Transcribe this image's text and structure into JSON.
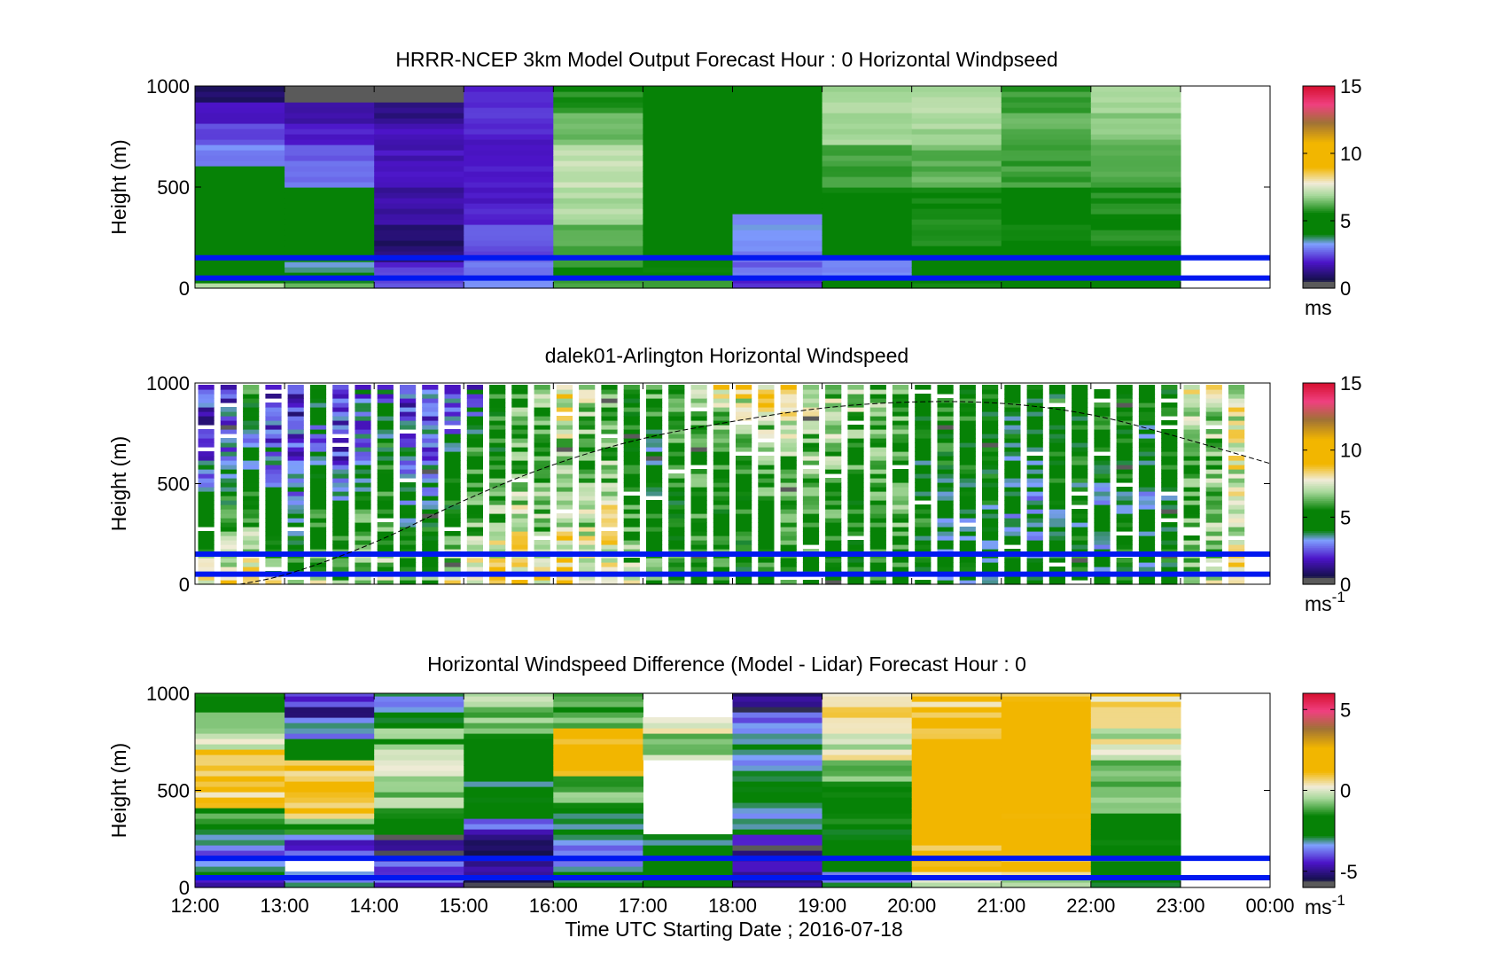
{
  "figure": {
    "xlabel": "Time UTC  Starting Date ; 2016-07-18",
    "x_tick_labels": [
      "12:00",
      "13:00",
      "14:00",
      "15:00",
      "16:00",
      "17:00",
      "18:00",
      "19:00",
      "20:00",
      "21:00",
      "22:00",
      "23:00",
      "00:00"
    ]
  },
  "colors": {
    "scale_low": "#5a5a5a",
    "dark_navy": "#14104a",
    "purple": "#4c14c8",
    "light_blue": "#7fa0ff",
    "dark_green": "#068206",
    "light_green": "#a6d89a",
    "pale": "#f1ecd8",
    "gold": "#f2b600",
    "brown": "#a07236",
    "pink": "#f04080",
    "red": "#d61030",
    "overlay_line": "#0018f0"
  },
  "chart_data": [
    {
      "type": "heatmap",
      "title": "HRRR-NCEP 3km Model Output   Forecast Hour : 0 Horizontal Windpseed",
      "ylabel": "Height (m)",
      "y_ticks": [
        "0",
        "500",
        "1000"
      ],
      "ylim": [
        0,
        1000
      ],
      "xlim": [
        "12:00",
        "00:00"
      ],
      "colorbar": {
        "range": [
          0,
          15
        ],
        "ticks": [
          "0",
          "5",
          "10",
          "15"
        ],
        "unit": "ms",
        "unit_sup": ""
      },
      "overlay_lines_height_m": [
        150,
        50
      ],
      "data_hours": 11,
      "profiles": [
        [
          [
            0,
            20,
            7.0
          ],
          [
            20,
            70,
            4.5
          ],
          [
            70,
            130,
            5.3
          ],
          [
            130,
            200,
            4.5
          ],
          [
            200,
            600,
            4.8
          ],
          [
            600,
            700,
            3.0
          ],
          [
            700,
            800,
            2.4
          ],
          [
            800,
            900,
            2.0
          ],
          [
            900,
            1000,
            0.8
          ]
        ],
        [
          [
            0,
            20,
            6.5
          ],
          [
            20,
            70,
            4.0
          ],
          [
            70,
            130,
            3.5
          ],
          [
            130,
            200,
            4.0
          ],
          [
            200,
            500,
            4.5
          ],
          [
            500,
            600,
            3.0
          ],
          [
            600,
            700,
            2.8
          ],
          [
            700,
            800,
            2.0
          ],
          [
            800,
            900,
            1.5
          ],
          [
            900,
            1000,
            0.2
          ]
        ],
        [
          [
            0,
            70,
            2.5
          ],
          [
            70,
            130,
            2.2
          ],
          [
            130,
            300,
            1.0
          ],
          [
            300,
            500,
            1.5
          ],
          [
            500,
            800,
            1.8
          ],
          [
            800,
            900,
            1.2
          ],
          [
            900,
            1000,
            0.2
          ]
        ],
        [
          [
            0,
            30,
            3.0
          ],
          [
            30,
            70,
            2.6
          ],
          [
            70,
            150,
            2.8
          ],
          [
            150,
            300,
            2.6
          ],
          [
            300,
            500,
            2.0
          ],
          [
            500,
            800,
            2.0
          ],
          [
            800,
            1000,
            2.2
          ]
        ],
        [
          [
            0,
            30,
            6.2
          ],
          [
            30,
            100,
            5.5
          ],
          [
            100,
            300,
            6.2
          ],
          [
            300,
            500,
            7.0
          ],
          [
            500,
            700,
            7.2
          ],
          [
            700,
            850,
            6.4
          ],
          [
            850,
            1000,
            5.8
          ]
        ],
        [
          [
            0,
            50,
            6.0
          ],
          [
            50,
            150,
            5.5
          ],
          [
            150,
            400,
            5.0
          ],
          [
            400,
            800,
            4.9
          ],
          [
            800,
            1000,
            4.7
          ]
        ],
        [
          [
            0,
            50,
            2.2
          ],
          [
            50,
            150,
            2.8
          ],
          [
            150,
            250,
            3.0
          ],
          [
            250,
            350,
            3.2
          ],
          [
            350,
            450,
            5.0
          ],
          [
            450,
            1000,
            4.8
          ]
        ],
        [
          [
            0,
            50,
            5.5
          ],
          [
            50,
            150,
            3.0
          ],
          [
            150,
            350,
            4.8
          ],
          [
            350,
            500,
            5.4
          ],
          [
            500,
            700,
            6.0
          ],
          [
            700,
            850,
            6.8
          ],
          [
            850,
            1000,
            7.0
          ]
        ],
        [
          [
            0,
            50,
            5.5
          ],
          [
            50,
            200,
            5.2
          ],
          [
            200,
            500,
            5.6
          ],
          [
            500,
            700,
            6.3
          ],
          [
            700,
            850,
            6.9
          ],
          [
            850,
            1000,
            7.0
          ]
        ],
        [
          [
            0,
            50,
            5.5
          ],
          [
            50,
            200,
            5.3
          ],
          [
            200,
            500,
            5.6
          ],
          [
            500,
            700,
            6.0
          ],
          [
            700,
            850,
            6.3
          ],
          [
            850,
            1000,
            6.0
          ]
        ],
        [
          [
            0,
            50,
            5.5
          ],
          [
            50,
            200,
            5.3
          ],
          [
            200,
            500,
            5.7
          ],
          [
            500,
            700,
            6.2
          ],
          [
            700,
            850,
            6.6
          ],
          [
            850,
            1000,
            7.0
          ]
        ]
      ]
    },
    {
      "type": "heatmap",
      "title": "dalek01-Arlington  Horizontal Windspeed",
      "ylabel": "Height (m)",
      "y_ticks": [
        "0",
        "500",
        "1000"
      ],
      "ylim": [
        0,
        1000
      ],
      "xlim": [
        "12:00",
        "00:00"
      ],
      "colorbar": {
        "range": [
          0,
          15
        ],
        "ticks": [
          "0",
          "5",
          "10",
          "15"
        ],
        "unit": "ms",
        "unit_sup": "-1"
      },
      "overlay_lines_height_m": [
        150,
        50
      ],
      "data_hours": 11.87,
      "columns_per_hour": 4,
      "column_fill": 0.72,
      "column_base_speeds_low_to_high": [
        [
          7.5,
          5.0,
          2.5,
          2.0
        ],
        [
          8.5,
          5.5,
          3.0,
          2.0
        ],
        [
          8.0,
          6.0,
          3.5,
          6.0
        ],
        [
          7.5,
          5.0,
          3.0,
          2.0
        ],
        [
          6.0,
          4.0,
          2.5,
          2.0
        ],
        [
          7.0,
          5.0,
          3.0,
          5.5
        ],
        [
          6.5,
          4.5,
          2.0,
          3.0
        ],
        [
          7.5,
          5.5,
          2.5,
          3.0
        ],
        [
          7.0,
          5.5,
          5.0,
          2.5
        ],
        [
          6.5,
          4.5,
          3.0,
          2.0
        ],
        [
          6.0,
          4.5,
          3.0,
          2.5
        ],
        [
          8.0,
          5.0,
          4.0,
          2.0
        ],
        [
          8.5,
          6.0,
          5.5,
          2.5
        ],
        [
          8.0,
          6.5,
          5.0,
          5.5
        ],
        [
          8.5,
          7.0,
          6.0,
          6.0
        ],
        [
          8.0,
          6.5,
          5.5,
          7.0
        ],
        [
          8.5,
          7.5,
          6.5,
          8.5
        ],
        [
          8.5,
          7.0,
          6.0,
          7.5
        ],
        [
          8.0,
          7.5,
          6.0,
          6.5
        ],
        [
          7.0,
          5.5,
          5.0,
          5.0
        ],
        [
          6.0,
          5.0,
          4.5,
          6.0
        ],
        [
          5.5,
          5.0,
          5.5,
          6.0
        ],
        [
          6.0,
          5.5,
          5.5,
          6.5
        ],
        [
          5.5,
          5.0,
          5.5,
          8.0
        ],
        [
          5.0,
          5.0,
          5.5,
          8.5
        ],
        [
          5.0,
          5.5,
          6.0,
          9.0
        ],
        [
          5.0,
          5.5,
          6.5,
          8.5
        ],
        [
          5.0,
          6.0,
          6.5,
          7.5
        ],
        [
          5.0,
          5.5,
          6.5,
          7.0
        ],
        [
          5.0,
          5.0,
          6.0,
          7.0
        ],
        [
          5.0,
          5.5,
          6.0,
          6.5
        ],
        [
          5.0,
          6.0,
          5.5,
          6.0
        ],
        [
          4.5,
          5.0,
          4.5,
          5.0
        ],
        [
          4.5,
          4.0,
          5.0,
          5.5
        ],
        [
          4.5,
          4.0,
          5.0,
          5.0
        ],
        [
          4.5,
          4.5,
          5.0,
          5.0
        ],
        [
          5.0,
          4.0,
          4.5,
          5.0
        ],
        [
          5.0,
          3.5,
          4.0,
          5.0
        ],
        [
          5.0,
          4.5,
          5.0,
          5.0
        ],
        [
          5.0,
          4.5,
          5.0,
          5.0
        ],
        [
          4.5,
          4.0,
          5.0,
          5.0
        ],
        [
          5.0,
          4.5,
          5.0,
          5.0
        ],
        [
          4.5,
          4.0,
          4.5,
          5.0
        ],
        [
          5.0,
          4.5,
          5.0,
          5.0
        ],
        [
          6.5,
          6.0,
          6.0,
          8.0
        ],
        [
          7.0,
          6.5,
          6.5,
          7.5
        ],
        [
          8.0,
          7.5,
          7.5,
          7.5
        ],
        [
          8.0,
          8.0,
          7.0,
          7.5
        ]
      ],
      "sounding_curve_height_m": [
        [
          12.5,
          0
        ],
        [
          13,
          40
        ],
        [
          14,
          200
        ],
        [
          15,
          420
        ],
        [
          16,
          600
        ],
        [
          17,
          730
        ],
        [
          18,
          810
        ],
        [
          19,
          880
        ],
        [
          20,
          910
        ],
        [
          21,
          905
        ],
        [
          22,
          850
        ],
        [
          23,
          730
        ],
        [
          24,
          600
        ]
      ]
    },
    {
      "type": "heatmap",
      "title": "Horizontal Windspeed Difference (Model - Lidar) Forecast Hour : 0",
      "ylabel": "Height (m)",
      "y_ticks": [
        "0",
        "500",
        "1000"
      ],
      "ylim": [
        0,
        1000
      ],
      "xlim": [
        "12:00",
        "00:00"
      ],
      "colorbar": {
        "range": [
          -6,
          6
        ],
        "ticks": [
          "-5",
          "0",
          "5"
        ],
        "unit": "ms",
        "unit_sup": "-1"
      },
      "overlay_lines_height_m": [
        150,
        50
      ],
      "data_hours": 11,
      "profiles": [
        [
          [
            0,
            50,
            -4.5
          ],
          [
            50,
            150,
            -3.0
          ],
          [
            150,
            300,
            -3.5
          ],
          [
            300,
            400,
            -1.5
          ],
          [
            400,
            700,
            0.8
          ],
          [
            700,
            800,
            0.0
          ],
          [
            800,
            900,
            -1.0
          ],
          [
            900,
            1000,
            -2.0
          ]
        ],
        [
          [
            0,
            60,
            -3.0
          ],
          [
            60,
            150,
            -99
          ],
          [
            150,
            250,
            -4.0
          ],
          [
            250,
            350,
            -1.0
          ],
          [
            350,
            650,
            1.2
          ],
          [
            650,
            750,
            -2.5
          ],
          [
            750,
            850,
            -3.5
          ],
          [
            850,
            1000,
            -4.5
          ]
        ],
        [
          [
            0,
            150,
            -4.0
          ],
          [
            150,
            250,
            -5.5
          ],
          [
            250,
            400,
            -2.0
          ],
          [
            400,
            550,
            -0.5
          ],
          [
            550,
            700,
            0.5
          ],
          [
            700,
            800,
            -1.0
          ],
          [
            800,
            900,
            -2.5
          ],
          [
            900,
            1000,
            -3.5
          ]
        ],
        [
          [
            0,
            150,
            -5.0
          ],
          [
            150,
            250,
            -5.5
          ],
          [
            250,
            350,
            -4.0
          ],
          [
            350,
            550,
            -2.5
          ],
          [
            550,
            750,
            -2.2
          ],
          [
            750,
            900,
            -1.0
          ],
          [
            900,
            1000,
            -0.5
          ]
        ],
        [
          [
            0,
            100,
            -2.5
          ],
          [
            100,
            250,
            -3.5
          ],
          [
            250,
            400,
            -2.5
          ],
          [
            400,
            550,
            -1.0
          ],
          [
            550,
            700,
            1.5
          ],
          [
            700,
            800,
            1.5
          ],
          [
            800,
            900,
            -0.5
          ],
          [
            900,
            1000,
            -1.5
          ]
        ],
        [
          [
            0,
            50,
            -2.0
          ],
          [
            50,
            260,
            -2.5
          ],
          [
            260,
            650,
            -99
          ],
          [
            650,
            780,
            -0.5
          ],
          [
            780,
            870,
            -0.2
          ],
          [
            870,
            1000,
            -99
          ]
        ],
        [
          [
            0,
            150,
            -4.5
          ],
          [
            150,
            250,
            -5.0
          ],
          [
            250,
            450,
            -3.0
          ],
          [
            450,
            600,
            -2.5
          ],
          [
            600,
            800,
            -3.0
          ],
          [
            800,
            900,
            -4.0
          ],
          [
            900,
            1000,
            -5.0
          ]
        ],
        [
          [
            0,
            100,
            -3.0
          ],
          [
            100,
            300,
            -2.5
          ],
          [
            300,
            500,
            -2.0
          ],
          [
            500,
            650,
            -1.0
          ],
          [
            650,
            800,
            0.0
          ],
          [
            800,
            1000,
            0.3
          ]
        ],
        [
          [
            0,
            50,
            -0.5
          ],
          [
            50,
            200,
            1.0
          ],
          [
            200,
            400,
            1.8
          ],
          [
            400,
            650,
            2.0
          ],
          [
            650,
            850,
            1.5
          ],
          [
            850,
            1000,
            1.0
          ]
        ],
        [
          [
            0,
            50,
            -0.5
          ],
          [
            50,
            200,
            1.0
          ],
          [
            200,
            400,
            1.8
          ],
          [
            400,
            650,
            2.2
          ],
          [
            650,
            850,
            2.0
          ],
          [
            850,
            1000,
            1.3
          ]
        ],
        [
          [
            0,
            50,
            -3.0
          ],
          [
            50,
            200,
            -2.5
          ],
          [
            200,
            350,
            -2.0
          ],
          [
            350,
            500,
            -1.0
          ],
          [
            500,
            650,
            -0.5
          ],
          [
            650,
            800,
            0.0
          ],
          [
            800,
            1000,
            0.5
          ]
        ]
      ]
    }
  ]
}
